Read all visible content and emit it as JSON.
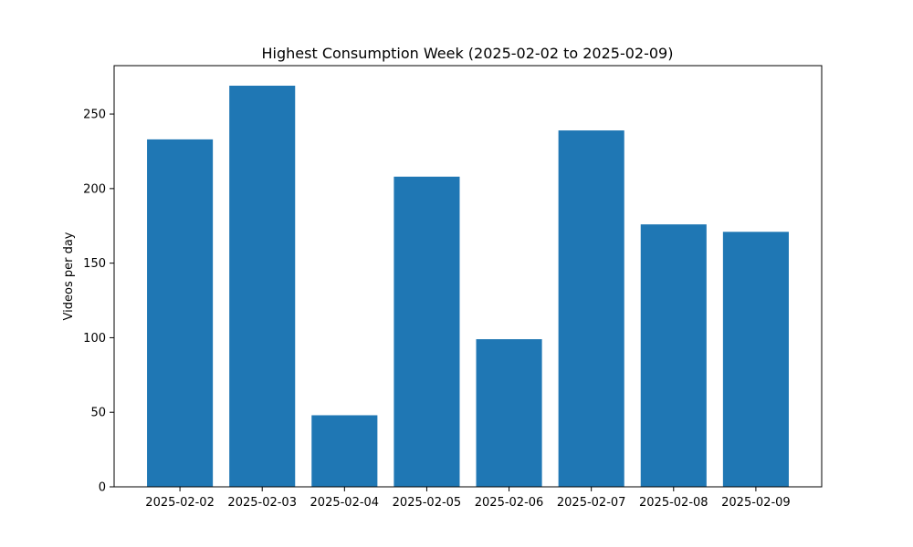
{
  "chart_data": {
    "type": "bar",
    "title": "Highest Consumption Week (2025-02-02 to 2025-02-09)",
    "xlabel": "",
    "ylabel": "Videos per day",
    "categories": [
      "2025-02-02",
      "2025-02-03",
      "2025-02-04",
      "2025-02-05",
      "2025-02-06",
      "2025-02-07",
      "2025-02-08",
      "2025-02-09"
    ],
    "values": [
      233,
      269,
      48,
      208,
      99,
      239,
      176,
      171
    ],
    "ylim": [
      0,
      282.45
    ],
    "yticks": [
      0,
      50,
      100,
      150,
      200,
      250
    ],
    "bar_color": "#1f77b4",
    "grid": false,
    "legend": "none"
  }
}
